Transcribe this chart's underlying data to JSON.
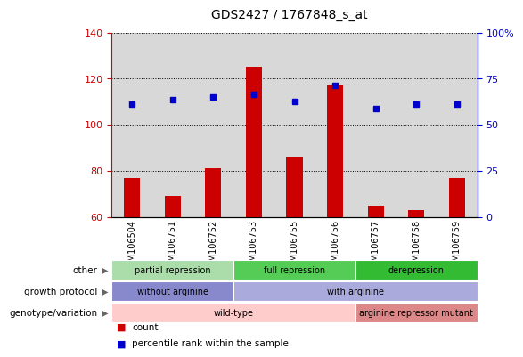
{
  "title": "GDS2427 / 1767848_s_at",
  "samples": [
    "GSM106504",
    "GSM106751",
    "GSM106752",
    "GSM106753",
    "GSM106755",
    "GSM106756",
    "GSM106757",
    "GSM106758",
    "GSM106759"
  ],
  "counts": [
    77,
    69,
    81,
    125,
    86,
    117,
    65,
    63,
    77
  ],
  "percentile_ranks": [
    109,
    111,
    112,
    113,
    110,
    117,
    107,
    109,
    109
  ],
  "ylim_left": [
    60,
    140
  ],
  "ylim_right": [
    0,
    100
  ],
  "yticks_left": [
    60,
    80,
    100,
    120,
    140
  ],
  "yticks_right": [
    0,
    25,
    50,
    75,
    100
  ],
  "bar_color": "#cc0000",
  "dot_color": "#0000cc",
  "bar_width": 0.4,
  "annotation_rows": [
    {
      "label": "other",
      "segments": [
        {
          "start": 0,
          "end": 3,
          "text": "partial repression",
          "color": "#aaddaa"
        },
        {
          "start": 3,
          "end": 6,
          "text": "full repression",
          "color": "#55cc55"
        },
        {
          "start": 6,
          "end": 9,
          "text": "derepression",
          "color": "#33bb33"
        }
      ]
    },
    {
      "label": "growth protocol",
      "segments": [
        {
          "start": 0,
          "end": 3,
          "text": "without arginine",
          "color": "#8888cc"
        },
        {
          "start": 3,
          "end": 9,
          "text": "with arginine",
          "color": "#aaaadd"
        }
      ]
    },
    {
      "label": "genotype/variation",
      "segments": [
        {
          "start": 0,
          "end": 6,
          "text": "wild-type",
          "color": "#ffcccc"
        },
        {
          "start": 6,
          "end": 9,
          "text": "arginine repressor mutant",
          "color": "#dd8888"
        }
      ]
    }
  ],
  "legend_items": [
    {
      "color": "#cc0000",
      "label": "count"
    },
    {
      "color": "#0000cc",
      "label": "percentile rank within the sample"
    }
  ],
  "left_tick_color": "#cc0000",
  "right_tick_color": "#0000cc",
  "plot_bg_color": "#d8d8d8",
  "xtick_bg_color": "#d8d8d8"
}
